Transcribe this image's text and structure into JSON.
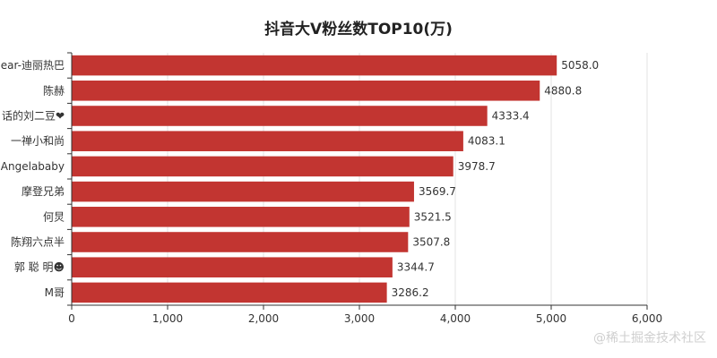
{
  "chart_data": {
    "type": "bar",
    "orientation": "horizontal",
    "title": "抖音大V粉丝数TOP10(万)",
    "categories": [
      "ear-迪丽热巴",
      "陈赫",
      "话的刘二豆❤",
      "一禅小和尚",
      "Angelababy",
      "摩登兄弟",
      "何炅",
      "陈翔六点半",
      "郭 聪 明☻",
      "M哥"
    ],
    "series": [
      {
        "values": [
          5058.0,
          4880.8,
          4333.4,
          4083.1,
          3978.7,
          3569.7,
          3521.5,
          3507.8,
          3344.7,
          3286.2
        ]
      }
    ],
    "value_labels": [
      "5058.0",
      "4880.8",
      "4333.4",
      "4083.1",
      "3978.7",
      "3569.7",
      "3521.5",
      "3507.8",
      "3344.7",
      "3286.2"
    ],
    "x_ticks": [
      0,
      1000,
      2000,
      3000,
      4000,
      5000,
      6000
    ],
    "x_tick_labels": [
      "0",
      "1,000",
      "2,000",
      "3,000",
      "4,000",
      "5,000",
      "6,000"
    ],
    "xlim": [
      0,
      6000
    ],
    "grid": true,
    "bar_color": "#c23531"
  },
  "watermark": "@稀土掘金技术社区"
}
